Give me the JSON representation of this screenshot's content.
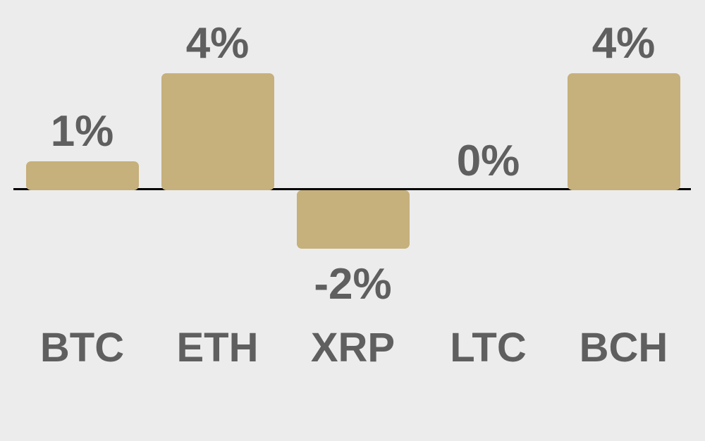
{
  "chart_data": {
    "type": "bar",
    "categories": [
      "BTC",
      "ETH",
      "XRP",
      "LTC",
      "BCH"
    ],
    "values": [
      1,
      4,
      -2,
      0,
      4
    ],
    "value_labels": [
      "1%",
      "4%",
      "-2%",
      "0%",
      "4%"
    ],
    "title": "",
    "xlabel": "",
    "ylabel": "",
    "ylim": [
      -2.5,
      4.5
    ],
    "grid": false,
    "legend": "none",
    "colors": {
      "bar": "#c6b07b",
      "background": "#ececec",
      "label_text": "#5f5f5f",
      "axis_line": "#000000"
    }
  }
}
